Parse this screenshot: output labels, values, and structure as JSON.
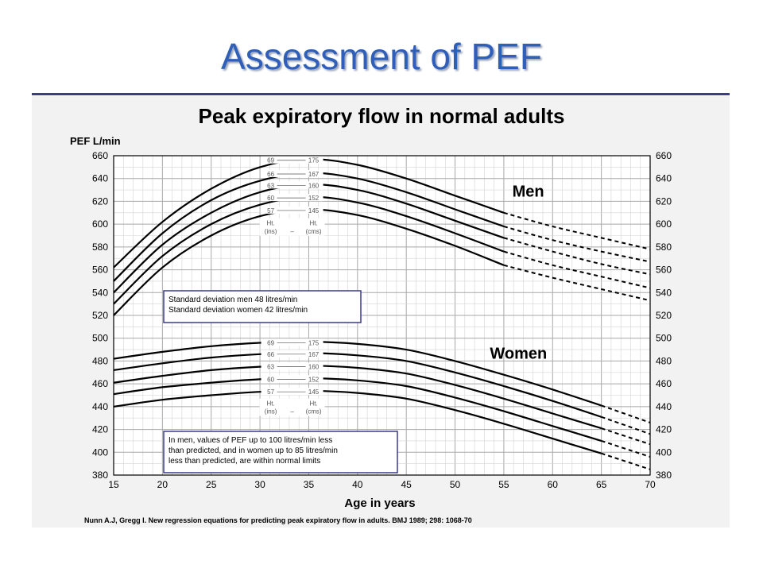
{
  "slide": {
    "title": "Assessment of PEF"
  },
  "chart_data": {
    "type": "line",
    "title": "Peak expiratory flow in normal adults",
    "ylabel": "PEF L/min",
    "xlabel": "Age in years",
    "xlim": [
      15,
      70
    ],
    "ylim": [
      380,
      660
    ],
    "x_ticks": [
      15,
      20,
      25,
      30,
      35,
      40,
      45,
      50,
      55,
      60,
      65,
      70
    ],
    "y_ticks": [
      380,
      400,
      420,
      440,
      460,
      480,
      500,
      520,
      540,
      560,
      580,
      600,
      620,
      640,
      660
    ],
    "grid": true,
    "groups": [
      {
        "label": "Men",
        "solid_until_age": 55,
        "height_labels": [
          {
            "ins": "69",
            "cms": "175"
          },
          {
            "ins": "66",
            "cms": "167"
          },
          {
            "ins": "63",
            "cms": "160"
          },
          {
            "ins": "60",
            "cms": "152"
          },
          {
            "ins": "57",
            "cms": "145"
          }
        ],
        "height_header": {
          "ins": "Ht.",
          "cms": "Ht.",
          "ins_unit": "(ins)",
          "cms_unit": "(cms)",
          "sep": "–"
        },
        "series": [
          {
            "name": "69 in / 175 cm",
            "points": [
              [
                15,
                562
              ],
              [
                20,
                602
              ],
              [
                25,
                631
              ],
              [
                30,
                650
              ],
              [
                35,
                657
              ],
              [
                40,
                652
              ],
              [
                45,
                640
              ],
              [
                50,
                625
              ],
              [
                55,
                610
              ],
              [
                60,
                598
              ],
              [
                65,
                588
              ],
              [
                70,
                578
              ]
            ]
          },
          {
            "name": "66 in / 167 cm",
            "points": [
              [
                15,
                550
              ],
              [
                20,
                592
              ],
              [
                25,
                621
              ],
              [
                30,
                638
              ],
              [
                35,
                645
              ],
              [
                40,
                640
              ],
              [
                45,
                628
              ],
              [
                50,
                613
              ],
              [
                55,
                598
              ],
              [
                60,
                586
              ],
              [
                65,
                576
              ],
              [
                70,
                567
              ]
            ]
          },
          {
            "name": "63 in / 160 cm",
            "points": [
              [
                15,
                540
              ],
              [
                20,
                582
              ],
              [
                25,
                610
              ],
              [
                30,
                628
              ],
              [
                35,
                635
              ],
              [
                40,
                630
              ],
              [
                45,
                618
              ],
              [
                50,
                603
              ],
              [
                55,
                588
              ],
              [
                60,
                576
              ],
              [
                65,
                565
              ],
              [
                70,
                556
              ]
            ]
          },
          {
            "name": "60 in / 152 cm",
            "points": [
              [
                15,
                530
              ],
              [
                20,
                572
              ],
              [
                25,
                600
              ],
              [
                30,
                617
              ],
              [
                35,
                624
              ],
              [
                40,
                619
              ],
              [
                45,
                607
              ],
              [
                50,
                592
              ],
              [
                55,
                576
              ],
              [
                60,
                564
              ],
              [
                65,
                554
              ],
              [
                70,
                544
              ]
            ]
          },
          {
            "name": "57 in / 145 cm",
            "points": [
              [
                15,
                520
              ],
              [
                20,
                562
              ],
              [
                25,
                590
              ],
              [
                30,
                607
              ],
              [
                35,
                613
              ],
              [
                40,
                608
              ],
              [
                45,
                596
              ],
              [
                50,
                581
              ],
              [
                55,
                564
              ],
              [
                60,
                553
              ],
              [
                65,
                543
              ],
              [
                70,
                533
              ]
            ]
          }
        ]
      },
      {
        "label": "Women",
        "solid_until_age": 65,
        "height_labels": [
          {
            "ins": "69",
            "cms": "175"
          },
          {
            "ins": "66",
            "cms": "167"
          },
          {
            "ins": "63",
            "cms": "160"
          },
          {
            "ins": "60",
            "cms": "152"
          },
          {
            "ins": "57",
            "cms": "145"
          }
        ],
        "height_header": {
          "ins": "Ht.",
          "cms": "Ht.",
          "ins_unit": "(ins)",
          "cms_unit": "(cms)",
          "sep": "–"
        },
        "series": [
          {
            "name": "69 in / 175 cm",
            "points": [
              [
                15,
                482
              ],
              [
                20,
                488
              ],
              [
                25,
                493
              ],
              [
                30,
                496
              ],
              [
                35,
                497
              ],
              [
                40,
                495
              ],
              [
                45,
                490
              ],
              [
                50,
                480
              ],
              [
                55,
                468
              ],
              [
                60,
                455
              ],
              [
                65,
                441
              ],
              [
                70,
                426
              ]
            ]
          },
          {
            "name": "66 in / 167 cm",
            "points": [
              [
                15,
                472
              ],
              [
                20,
                478
              ],
              [
                25,
                483
              ],
              [
                30,
                486
              ],
              [
                35,
                487
              ],
              [
                40,
                485
              ],
              [
                45,
                480
              ],
              [
                50,
                470
              ],
              [
                55,
                458
              ],
              [
                60,
                445
              ],
              [
                65,
                431
              ],
              [
                70,
                416
              ]
            ]
          },
          {
            "name": "63 in / 160 cm",
            "points": [
              [
                15,
                461
              ],
              [
                20,
                467
              ],
              [
                25,
                472
              ],
              [
                30,
                475
              ],
              [
                35,
                476
              ],
              [
                40,
                474
              ],
              [
                45,
                469
              ],
              [
                50,
                459
              ],
              [
                55,
                447
              ],
              [
                60,
                434
              ],
              [
                65,
                421
              ],
              [
                70,
                407
              ]
            ]
          },
          {
            "name": "60 in / 152 cm",
            "points": [
              [
                15,
                451
              ],
              [
                20,
                457
              ],
              [
                25,
                461
              ],
              [
                30,
                464
              ],
              [
                35,
                465
              ],
              [
                40,
                463
              ],
              [
                45,
                458
              ],
              [
                50,
                448
              ],
              [
                55,
                436
              ],
              [
                60,
                423
              ],
              [
                65,
                410
              ],
              [
                70,
                396
              ]
            ]
          },
          {
            "name": "57 in / 145 cm",
            "points": [
              [
                15,
                440
              ],
              [
                20,
                446
              ],
              [
                25,
                450
              ],
              [
                30,
                453
              ],
              [
                35,
                454
              ],
              [
                40,
                452
              ],
              [
                45,
                447
              ],
              [
                50,
                437
              ],
              [
                55,
                425
              ],
              [
                60,
                412
              ],
              [
                65,
                399
              ],
              [
                70,
                385
              ]
            ]
          }
        ]
      }
    ],
    "annotations": {
      "sd_box": [
        "Standard deviation men 48 litres/min",
        "Standard deviation women 42 litres/min"
      ],
      "limits_box": [
        "In men, values of PEF up to 100 litres/min less",
        "than predicted, and in women up to 85 litres/min",
        "less than predicted, are within normal limits"
      ]
    },
    "citation": "Nunn A.J, Gregg I. New regression equations for predicting peak expiratory flow in adults. BMJ 1989; 298: 1068-70"
  }
}
